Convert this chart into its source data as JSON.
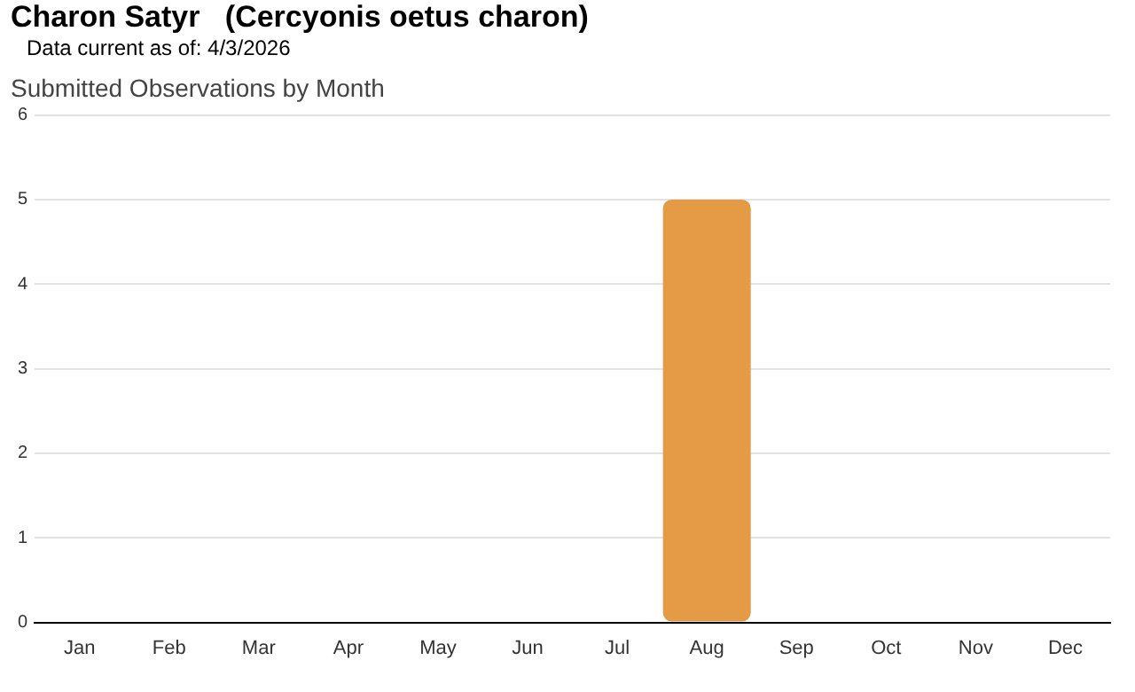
{
  "chart_data": {
    "type": "bar",
    "title": "Charon Satyr   (Cercyonis oetus charon)",
    "subtitle": "Data current as of: 4/3/2026",
    "annotations": [
      "Submitted Observations by Month"
    ],
    "categories": [
      "Jan",
      "Feb",
      "Mar",
      "Apr",
      "May",
      "Jun",
      "Jul",
      "Aug",
      "Sep",
      "Oct",
      "Nov",
      "Dec"
    ],
    "values": [
      0,
      0,
      0,
      0,
      0,
      0,
      0,
      5,
      0,
      0,
      0,
      0
    ],
    "color": "#e59a45",
    "ylim": [
      0,
      6
    ],
    "yticks": [
      0,
      1,
      2,
      3,
      4,
      5,
      6
    ],
    "grid": "y",
    "legend": false
  }
}
